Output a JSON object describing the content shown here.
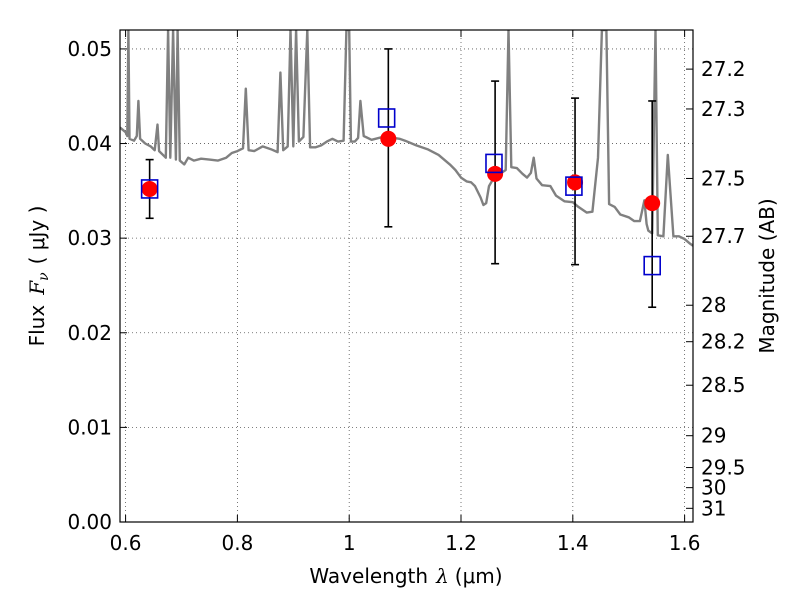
{
  "chart_data": {
    "type": "scatter",
    "xlabel": {
      "text": "Wavelength",
      "symbol": "λ",
      "unit": "(μm)"
    },
    "ylabel": {
      "text": "Flux",
      "symbol": "F",
      "subscript": "ν",
      "unit": "( μJy )"
    },
    "y2label": "Magnitude (AB)",
    "xlim": [
      0.59,
      1.615
    ],
    "ylim": [
      0.0,
      0.052
    ],
    "grid": true,
    "x_ticks": [
      {
        "value": 0.6,
        "label": "0.6"
      },
      {
        "value": 0.8,
        "label": "0.8"
      },
      {
        "value": 1.0,
        "label": "1"
      },
      {
        "value": 1.2,
        "label": "1.2"
      },
      {
        "value": 1.4,
        "label": "1.4"
      },
      {
        "value": 1.6,
        "label": "1.6"
      }
    ],
    "y_ticks": [
      {
        "value": 0.0,
        "label": "0.00"
      },
      {
        "value": 0.01,
        "label": "0.01"
      },
      {
        "value": 0.02,
        "label": "0.02"
      },
      {
        "value": 0.03,
        "label": "0.03"
      },
      {
        "value": 0.04,
        "label": "0.04"
      },
      {
        "value": 0.05,
        "label": "0.05"
      }
    ],
    "mag_ticks": [
      {
        "mag": 27.2,
        "label": "27.2"
      },
      {
        "mag": 27.3,
        "label": "27.3"
      },
      {
        "mag": 27.5,
        "label": "27.5"
      },
      {
        "mag": 27.7,
        "label": "27.7"
      },
      {
        "mag": 28.0,
        "label": "28"
      },
      {
        "mag": 28.2,
        "label": "28.2"
      },
      {
        "mag": 28.5,
        "label": "28.5"
      },
      {
        "mag": 29.0,
        "label": "29"
      },
      {
        "mag": 29.5,
        "label": "29.5"
      },
      {
        "mag": 30.0,
        "label": "30"
      },
      {
        "mag": 31.0,
        "label": "31"
      }
    ],
    "series": [
      {
        "marker": "line",
        "color": "#808080",
        "points": [
          [
            0.59,
            0.0417
          ],
          [
            0.6,
            0.0412
          ],
          [
            0.603,
            0.0408
          ],
          [
            0.605,
            0.052
          ],
          [
            0.607,
            0.0405
          ],
          [
            0.615,
            0.0403
          ],
          [
            0.62,
            0.0408
          ],
          [
            0.623,
            0.0445
          ],
          [
            0.626,
            0.0405
          ],
          [
            0.635,
            0.04
          ],
          [
            0.645,
            0.0397
          ],
          [
            0.652,
            0.0393
          ],
          [
            0.657,
            0.042
          ],
          [
            0.66,
            0.0392
          ],
          [
            0.672,
            0.0385
          ],
          [
            0.676,
            0.052
          ],
          [
            0.68,
            0.0385
          ],
          [
            0.685,
            0.052
          ],
          [
            0.69,
            0.0383
          ],
          [
            0.693,
            0.052
          ],
          [
            0.697,
            0.0382
          ],
          [
            0.705,
            0.0378
          ],
          [
            0.712,
            0.0385
          ],
          [
            0.722,
            0.0382
          ],
          [
            0.735,
            0.0384
          ],
          [
            0.75,
            0.0383
          ],
          [
            0.765,
            0.0382
          ],
          [
            0.78,
            0.0385
          ],
          [
            0.79,
            0.039
          ],
          [
            0.8,
            0.0392
          ],
          [
            0.81,
            0.0395
          ],
          [
            0.815,
            0.0458
          ],
          [
            0.82,
            0.0393
          ],
          [
            0.83,
            0.0392
          ],
          [
            0.845,
            0.0397
          ],
          [
            0.86,
            0.0394
          ],
          [
            0.872,
            0.0391
          ],
          [
            0.877,
            0.0475
          ],
          [
            0.882,
            0.0393
          ],
          [
            0.89,
            0.0397
          ],
          [
            0.895,
            0.052
          ],
          [
            0.9,
            0.0397
          ],
          [
            0.905,
            0.052
          ],
          [
            0.91,
            0.0402
          ],
          [
            0.918,
            0.0407
          ],
          [
            0.925,
            0.052
          ],
          [
            0.93,
            0.0396
          ],
          [
            0.94,
            0.0396
          ],
          [
            0.95,
            0.0398
          ],
          [
            0.96,
            0.0402
          ],
          [
            0.97,
            0.0405
          ],
          [
            0.98,
            0.0402
          ],
          [
            0.99,
            0.0403
          ],
          [
            0.995,
            0.052
          ],
          [
            1.0,
            0.052
          ],
          [
            1.003,
            0.0402
          ],
          [
            1.01,
            0.0402
          ],
          [
            1.016,
            0.0406
          ],
          [
            1.02,
            0.0445
          ],
          [
            1.026,
            0.0408
          ],
          [
            1.04,
            0.0404
          ],
          [
            1.06,
            0.0407
          ],
          [
            1.08,
            0.0406
          ],
          [
            1.09,
            0.0405
          ],
          [
            1.1,
            0.0403
          ],
          [
            1.12,
            0.0398
          ],
          [
            1.14,
            0.0394
          ],
          [
            1.16,
            0.0388
          ],
          [
            1.18,
            0.0378
          ],
          [
            1.19,
            0.0372
          ],
          [
            1.2,
            0.0364
          ],
          [
            1.21,
            0.036
          ],
          [
            1.218,
            0.0359
          ],
          [
            1.225,
            0.0355
          ],
          [
            1.235,
            0.0343
          ],
          [
            1.24,
            0.0335
          ],
          [
            1.245,
            0.0337
          ],
          [
            1.25,
            0.0355
          ],
          [
            1.26,
            0.0365
          ],
          [
            1.27,
            0.0368
          ],
          [
            1.28,
            0.0372
          ],
          [
            1.285,
            0.052
          ],
          [
            1.29,
            0.0375
          ],
          [
            1.3,
            0.0374
          ],
          [
            1.31,
            0.0368
          ],
          [
            1.318,
            0.0364
          ],
          [
            1.325,
            0.0369
          ],
          [
            1.33,
            0.0385
          ],
          [
            1.335,
            0.0363
          ],
          [
            1.345,
            0.0356
          ],
          [
            1.36,
            0.0355
          ],
          [
            1.37,
            0.0345
          ],
          [
            1.385,
            0.0339
          ],
          [
            1.4,
            0.0338
          ],
          [
            1.41,
            0.0333
          ],
          [
            1.425,
            0.0327
          ],
          [
            1.435,
            0.0328
          ],
          [
            1.445,
            0.0385
          ],
          [
            1.452,
            0.052
          ],
          [
            1.46,
            0.052
          ],
          [
            1.465,
            0.0336
          ],
          [
            1.475,
            0.0333
          ],
          [
            1.485,
            0.0325
          ],
          [
            1.5,
            0.0322
          ],
          [
            1.51,
            0.0318
          ],
          [
            1.52,
            0.0318
          ],
          [
            1.528,
            0.034
          ],
          [
            1.532,
            0.0315
          ],
          [
            1.535,
            0.0308
          ],
          [
            1.542,
            0.0305
          ],
          [
            1.548,
            0.052
          ],
          [
            1.552,
            0.0303
          ],
          [
            1.562,
            0.0302
          ],
          [
            1.57,
            0.0388
          ],
          [
            1.575,
            0.0345
          ],
          [
            1.58,
            0.0302
          ],
          [
            1.59,
            0.0302
          ],
          [
            1.6,
            0.0299
          ],
          [
            1.61,
            0.0294
          ],
          [
            1.615,
            0.0292
          ]
        ]
      },
      {
        "marker": "errorbar",
        "color": "#000000",
        "points": [
          {
            "x": 0.643,
            "y": 0.0352,
            "lo": 0.0321,
            "hi": 0.0383
          },
          {
            "x": 1.07,
            "y": 0.0405,
            "lo": 0.0312,
            "hi": 0.05
          },
          {
            "x": 1.261,
            "y": 0.0368,
            "lo": 0.0273,
            "hi": 0.0466
          },
          {
            "x": 1.404,
            "y": 0.0359,
            "lo": 0.0272,
            "hi": 0.0448
          },
          {
            "x": 1.542,
            "y": 0.0337,
            "lo": 0.0227,
            "hi": 0.0445
          }
        ]
      },
      {
        "marker": "circle",
        "color": "#ff0000",
        "points": [
          [
            0.643,
            0.0352
          ],
          [
            1.07,
            0.0405
          ],
          [
            1.261,
            0.0368
          ],
          [
            1.404,
            0.0359
          ],
          [
            1.542,
            0.0337
          ]
        ]
      },
      {
        "marker": "open-square",
        "color": "#0000cc",
        "points": [
          [
            0.643,
            0.0352
          ],
          [
            1.067,
            0.0427
          ],
          [
            1.259,
            0.0379
          ],
          [
            1.402,
            0.0355
          ],
          [
            1.542,
            0.0271
          ]
        ]
      }
    ]
  }
}
